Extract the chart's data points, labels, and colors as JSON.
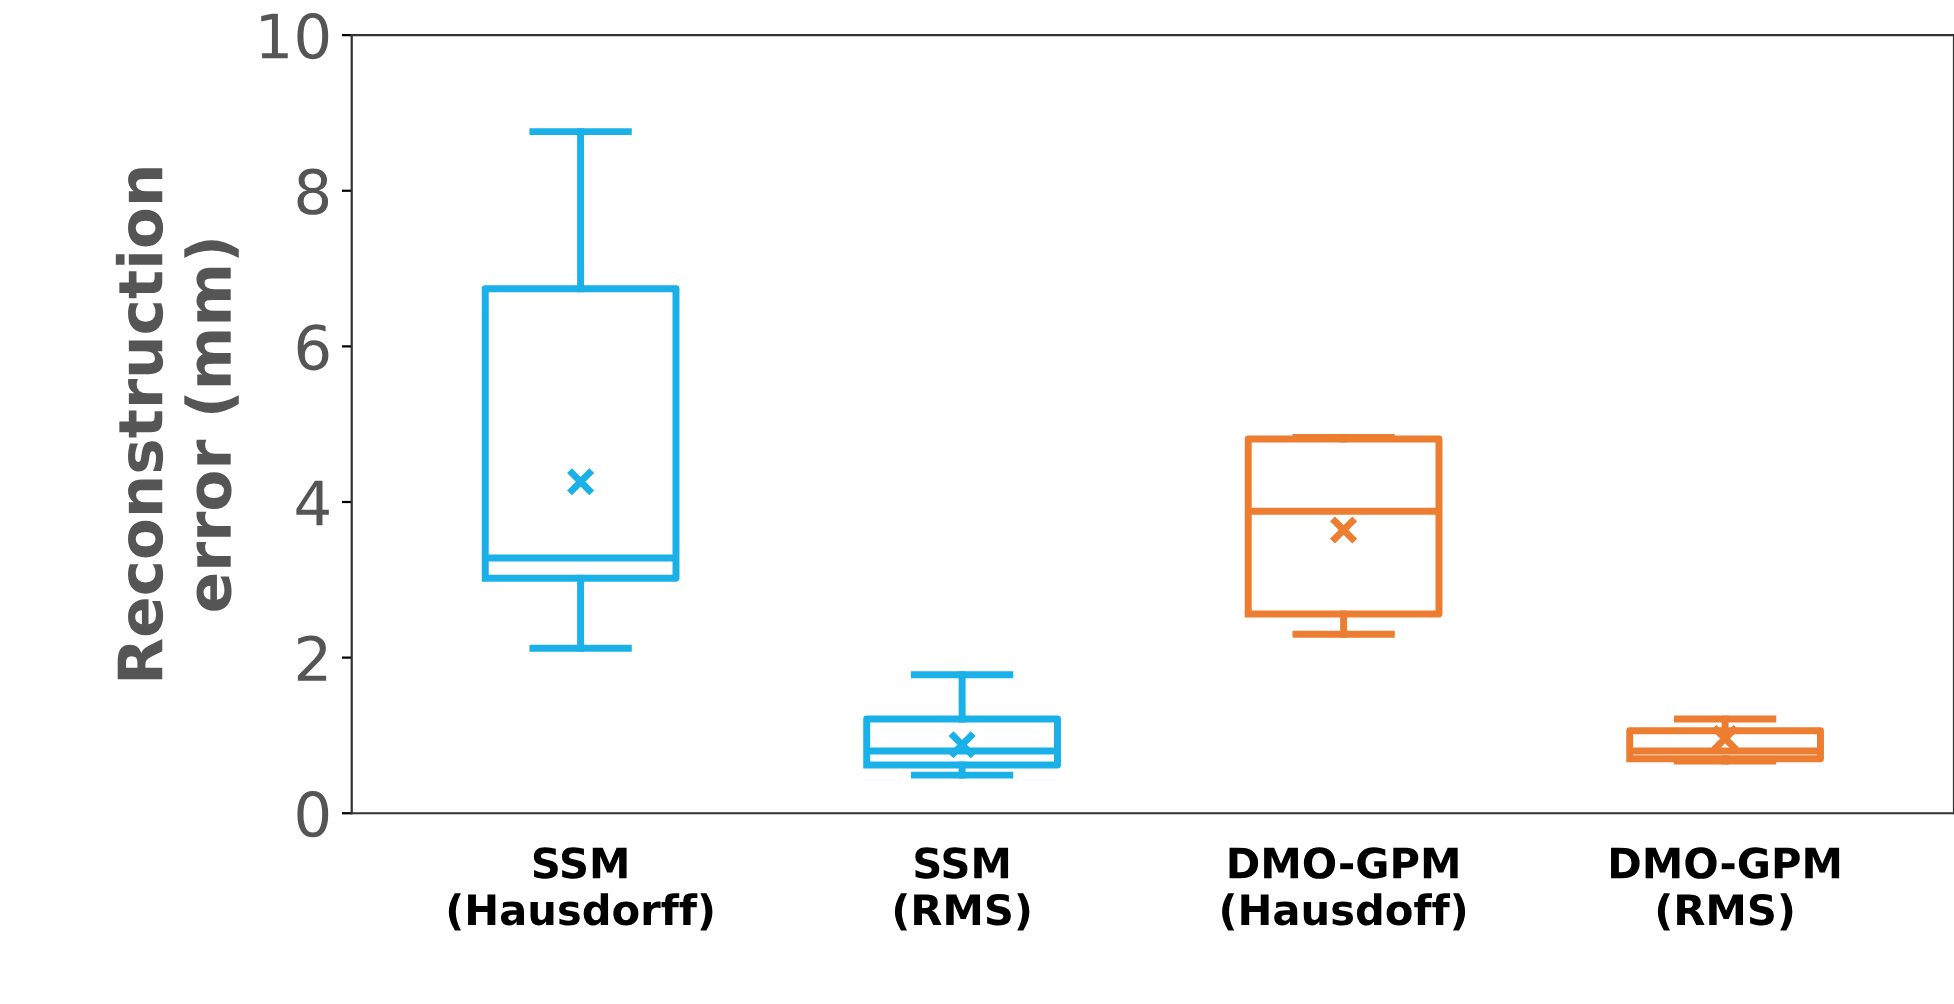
{
  "chart_data": {
    "type": "box",
    "ylabel": "Reconstruction\nerror (mm)",
    "categories": [
      "SSM\n(Hausdorff)",
      "SSM\n(RMS)",
      "DMO-GPM\n(Hausdoff)",
      "DMO-GPM\n(RMS)"
    ],
    "colors": [
      "#1ab0e8",
      "#1ab0e8",
      "#ed7d31",
      "#ed7d31"
    ],
    "boxes": [
      {
        "low": 2.12,
        "q1": 3.02,
        "median": 3.28,
        "q3": 6.74,
        "high": 8.76,
        "mean": 4.26
      },
      {
        "low": 0.49,
        "q1": 0.62,
        "median": 0.8,
        "q3": 1.21,
        "high": 1.78,
        "mean": 0.88
      },
      {
        "low": 2.3,
        "q1": 2.56,
        "median": 3.88,
        "q3": 4.81,
        "high": 4.83,
        "mean": 3.64
      },
      {
        "low": 0.67,
        "q1": 0.7,
        "median": 0.8,
        "q3": 1.06,
        "high": 1.21,
        "mean": 0.96
      }
    ],
    "ylim": [
      0,
      10
    ],
    "yticks": [
      0,
      2,
      4,
      6,
      8,
      10
    ],
    "grid": false,
    "marker": "cross"
  }
}
